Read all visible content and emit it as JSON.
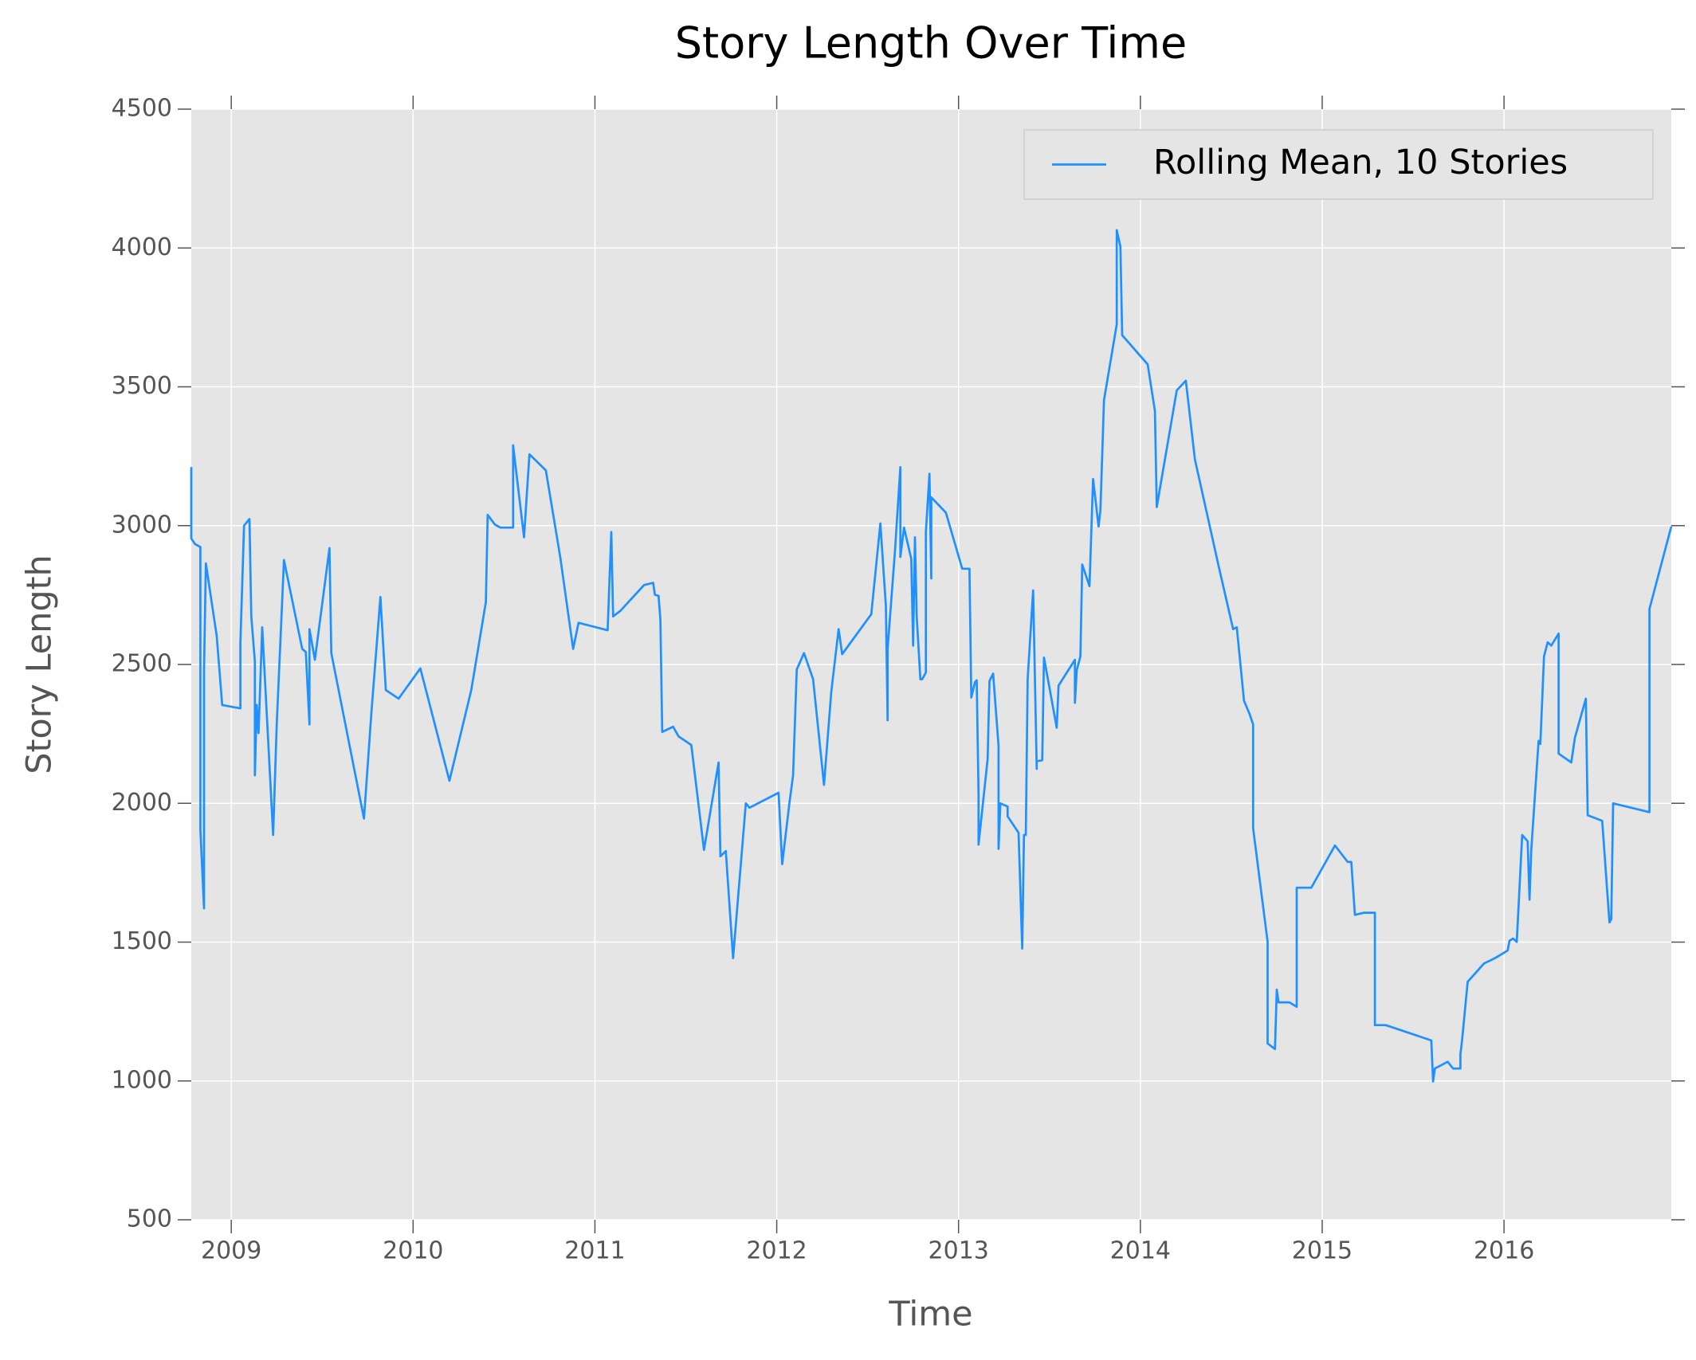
{
  "chart_data": {
    "type": "line",
    "title": "Story Length Over Time",
    "xlabel": "Time",
    "ylabel": "Story Length",
    "xlim": [
      2008.78,
      2016.92
    ],
    "xticks": [
      2009,
      2010,
      2011,
      2012,
      2013,
      2014,
      2015,
      2016
    ],
    "ylim": [
      500,
      4500
    ],
    "yticks": [
      500,
      1000,
      1500,
      2000,
      2500,
      3000,
      3500,
      4000,
      4500
    ],
    "grid": true,
    "legend": "upper right",
    "x": [
      2008.78,
      2008.78,
      2008.8,
      2008.83,
      2008.83,
      2008.85,
      2008.85,
      2008.86,
      2008.92,
      2008.95,
      2009.05,
      2009.05,
      2009.07,
      2009.1,
      2009.11,
      2009.13,
      2009.13,
      2009.14,
      2009.15,
      2009.17,
      2009.23,
      2009.25,
      2009.29,
      2009.39,
      2009.41,
      2009.43,
      2009.43,
      2009.46,
      2009.54,
      2009.55,
      2009.73,
      2009.77,
      2009.82,
      2009.85,
      2009.92,
      2010.04,
      2010.2,
      2010.32,
      2010.4,
      2010.41,
      2010.45,
      2010.48,
      2010.55,
      2010.55,
      2010.61,
      2010.64,
      2010.73,
      2010.81,
      2010.88,
      2010.91,
      2011.07,
      2011.09,
      2011.1,
      2011.14,
      2011.27,
      2011.32,
      2011.33,
      2011.35,
      2011.36,
      2011.37,
      2011.43,
      2011.46,
      2011.53,
      2011.6,
      2011.68,
      2011.69,
      2011.72,
      2011.76,
      2011.83,
      2011.85,
      2012.01,
      2012.03,
      2012.07,
      2012.09,
      2012.11,
      2012.15,
      2012.2,
      2012.26,
      2012.3,
      2012.34,
      2012.36,
      2012.52,
      2012.57,
      2012.6,
      2012.61,
      2012.61,
      2012.65,
      2012.68,
      2012.68,
      2012.7,
      2012.74,
      2012.75,
      2012.76,
      2012.77,
      2012.79,
      2012.8,
      2012.82,
      2012.82,
      2012.84,
      2012.85,
      2012.85,
      2012.93,
      2013.02,
      2013.06,
      2013.07,
      2013.09,
      2013.1,
      2013.11,
      2013.11,
      2013.16,
      2013.17,
      2013.19,
      2013.22,
      2013.22,
      2013.23,
      2013.27,
      2013.27,
      2013.33,
      2013.35,
      2013.36,
      2013.37,
      2013.38,
      2013.41,
      2013.43,
      2013.43,
      2013.46,
      2013.47,
      2013.54,
      2013.55,
      2013.64,
      2013.64,
      2013.65,
      2013.67,
      2013.68,
      2013.72,
      2013.74,
      2013.77,
      2013.78,
      2013.8,
      2013.87,
      2013.87,
      2013.89,
      2013.9,
      2014.04,
      2014.08,
      2014.09,
      2014.2,
      2014.25,
      2014.3,
      2014.43,
      2014.51,
      2014.53,
      2014.57,
      2014.6,
      2014.62,
      2014.62,
      2014.7,
      2014.7,
      2014.74,
      2014.75,
      2014.76,
      2014.82,
      2014.86,
      2014.86,
      2014.94,
      2015.07,
      2015.14,
      2015.16,
      2015.18,
      2015.23,
      2015.29,
      2015.29,
      2015.35,
      2015.6,
      2015.61,
      2015.62,
      2015.69,
      2015.72,
      2015.76,
      2015.76,
      2015.77,
      2015.8,
      2015.89,
      2015.94,
      2015.96,
      2016.02,
      2016.03,
      2016.05,
      2016.07,
      2016.1,
      2016.13,
      2016.14,
      2016.15,
      2016.19,
      2016.2,
      2016.22,
      2016.24,
      2016.26,
      2016.3,
      2016.3,
      2016.37,
      2016.39,
      2016.45,
      2016.46,
      2016.54,
      2016.58,
      2016.59,
      2016.6,
      2016.8,
      2016.8,
      2016.92
    ],
    "series": [
      {
        "name": "Rolling Mean, 10 Stories",
        "color": "#1e90ff",
        "values": [
          3211,
          2954,
          2934,
          2923,
          1906,
          1622,
          2478,
          2864,
          2603,
          2354,
          2342,
          2576,
          3000,
          3024,
          2673,
          2510,
          2101,
          2354,
          2253,
          2634,
          1886,
          2284,
          2876,
          2556,
          2545,
          2284,
          2627,
          2517,
          2919,
          2541,
          1945,
          2323,
          2743,
          2408,
          2377,
          2486,
          2081,
          2408,
          2724,
          3039,
          3004,
          2993,
          2993,
          3289,
          2958,
          3257,
          3199,
          2884,
          2556,
          2650,
          2623,
          2977,
          2673,
          2693,
          2786,
          2794,
          2751,
          2747,
          2662,
          2257,
          2276,
          2241,
          2210,
          1832,
          2147,
          1809,
          1828,
          1442,
          2000,
          1984,
          2038,
          1781,
          2003,
          2101,
          2482,
          2541,
          2447,
          2066,
          2401,
          2627,
          2537,
          2681,
          3008,
          2712,
          2299,
          2556,
          2907,
          3211,
          2887,
          2993,
          2880,
          2568,
          2958,
          2673,
          2447,
          2447,
          2471,
          2977,
          3187,
          2810,
          3102,
          3047,
          2845,
          2845,
          2381,
          2436,
          2443,
          2031,
          1851,
          2159,
          2440,
          2467,
          2206,
          1836,
          2000,
          1988,
          1953,
          1894,
          1477,
          1886,
          1886,
          2447,
          2767,
          2124,
          2151,
          2155,
          2525,
          2272,
          2424,
          2517,
          2362,
          2479,
          2529,
          2860,
          2782,
          3168,
          2997,
          3055,
          3452,
          3725,
          4064,
          4005,
          3686,
          3581,
          3413,
          3067,
          3487,
          3522,
          3238,
          2856,
          2627,
          2634,
          2369,
          2323,
          2284,
          1910,
          1501,
          1135,
          1115,
          1329,
          1283,
          1283,
          1267,
          1696,
          1696,
          1848,
          1789,
          1789,
          1598,
          1606,
          1606,
          1201,
          1201,
          1146,
          998,
          1045,
          1069,
          1045,
          1045,
          1096,
          1150,
          1357,
          1423,
          1439,
          1446,
          1470,
          1505,
          1513,
          1501,
          1886,
          1863,
          1653,
          1832,
          2225,
          2214,
          2529,
          2580,
          2568,
          2611,
          2179,
          2147,
          2237,
          2377,
          1957,
          1937,
          1571,
          1583,
          2000,
          1968,
          2700,
          2997
        ]
      }
    ]
  }
}
